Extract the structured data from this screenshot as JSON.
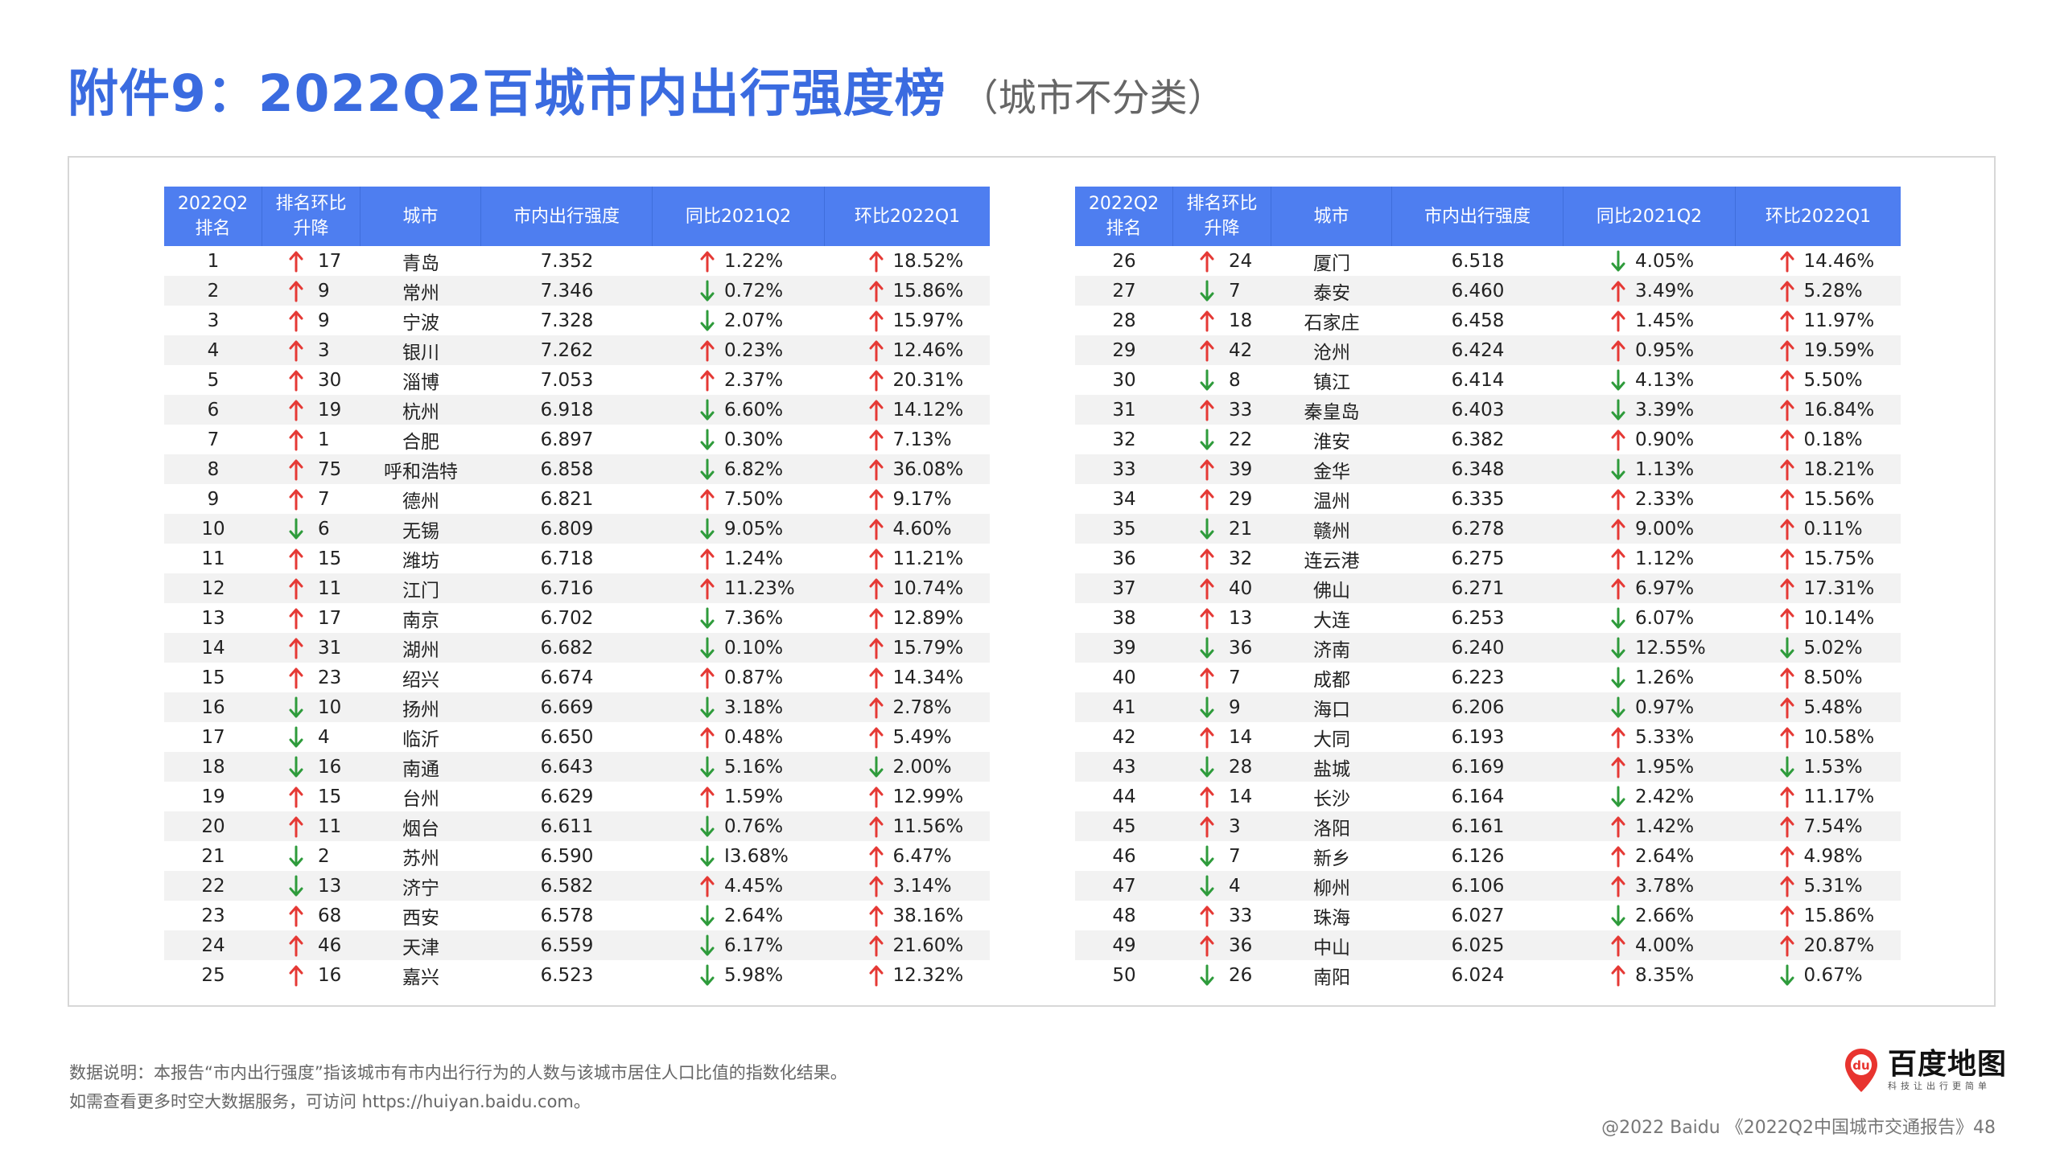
{
  "title": {
    "main": "附件9：2022Q2百城市内出行强度榜",
    "sub": "（城市不分类）"
  },
  "colors": {
    "up": "#e53935",
    "down": "#2e9b3b",
    "header_bg": "#4e7ef0",
    "title": "#3a6be0"
  },
  "table_headers": [
    "2022Q2\n排名",
    "排名环比\n升降",
    "城市",
    "市内出行强度",
    "同比2021Q2",
    "环比2022Q1"
  ],
  "rows": [
    [
      "1",
      "up",
      "17",
      "青岛",
      "7.352",
      "up",
      "1.22%",
      "up",
      "18.52%"
    ],
    [
      "2",
      "up",
      "9",
      "常州",
      "7.346",
      "down",
      "0.72%",
      "up",
      "15.86%"
    ],
    [
      "3",
      "up",
      "9",
      "宁波",
      "7.328",
      "down",
      "2.07%",
      "up",
      "15.97%"
    ],
    [
      "4",
      "up",
      "3",
      "银川",
      "7.262",
      "up",
      "0.23%",
      "up",
      "12.46%"
    ],
    [
      "5",
      "up",
      "30",
      "淄博",
      "7.053",
      "up",
      "2.37%",
      "up",
      "20.31%"
    ],
    [
      "6",
      "up",
      "19",
      "杭州",
      "6.918",
      "down",
      "6.60%",
      "up",
      "14.12%"
    ],
    [
      "7",
      "up",
      "1",
      "合肥",
      "6.897",
      "down",
      "0.30%",
      "up",
      "7.13%"
    ],
    [
      "8",
      "up",
      "75",
      "呼和浩特",
      "6.858",
      "down",
      "6.82%",
      "up",
      "36.08%"
    ],
    [
      "9",
      "up",
      "7",
      "德州",
      "6.821",
      "up",
      "7.50%",
      "up",
      "9.17%"
    ],
    [
      "10",
      "down",
      "6",
      "无锡",
      "6.809",
      "down",
      "9.05%",
      "up",
      "4.60%"
    ],
    [
      "11",
      "up",
      "15",
      "潍坊",
      "6.718",
      "up",
      "1.24%",
      "up",
      "11.21%"
    ],
    [
      "12",
      "up",
      "11",
      "江门",
      "6.716",
      "up",
      "11.23%",
      "up",
      "10.74%"
    ],
    [
      "13",
      "up",
      "17",
      "南京",
      "6.702",
      "down",
      "7.36%",
      "up",
      "12.89%"
    ],
    [
      "14",
      "up",
      "31",
      "湖州",
      "6.682",
      "down",
      "0.10%",
      "up",
      "15.79%"
    ],
    [
      "15",
      "up",
      "23",
      "绍兴",
      "6.674",
      "up",
      "0.87%",
      "up",
      "14.34%"
    ],
    [
      "16",
      "down",
      "10",
      "扬州",
      "6.669",
      "down",
      "3.18%",
      "up",
      "2.78%"
    ],
    [
      "17",
      "down",
      "4",
      "临沂",
      "6.650",
      "up",
      "0.48%",
      "up",
      "5.49%"
    ],
    [
      "18",
      "down",
      "16",
      "南通",
      "6.643",
      "down",
      "5.16%",
      "down",
      "2.00%"
    ],
    [
      "19",
      "up",
      "15",
      "台州",
      "6.629",
      "up",
      "1.59%",
      "up",
      "12.99%"
    ],
    [
      "20",
      "up",
      "11",
      "烟台",
      "6.611",
      "down",
      "0.76%",
      "up",
      "11.56%"
    ],
    [
      "21",
      "down",
      "2",
      "苏州",
      "6.590",
      "down",
      "I3.68%",
      "up",
      "6.47%"
    ],
    [
      "22",
      "down",
      "13",
      "济宁",
      "6.582",
      "up",
      "4.45%",
      "up",
      "3.14%"
    ],
    [
      "23",
      "up",
      "68",
      "西安",
      "6.578",
      "down",
      "2.64%",
      "up",
      "38.16%"
    ],
    [
      "24",
      "up",
      "46",
      "天津",
      "6.559",
      "down",
      "6.17%",
      "up",
      "21.60%"
    ],
    [
      "25",
      "up",
      "16",
      "嘉兴",
      "6.523",
      "down",
      "5.98%",
      "up",
      "12.32%"
    ],
    [
      "26",
      "up",
      "24",
      "厦门",
      "6.518",
      "down",
      "4.05%",
      "up",
      "14.46%"
    ],
    [
      "27",
      "down",
      "7",
      "泰安",
      "6.460",
      "up",
      "3.49%",
      "up",
      "5.28%"
    ],
    [
      "28",
      "up",
      "18",
      "石家庄",
      "6.458",
      "up",
      "1.45%",
      "up",
      "11.97%"
    ],
    [
      "29",
      "up",
      "42",
      "沧州",
      "6.424",
      "up",
      "0.95%",
      "up",
      "19.59%"
    ],
    [
      "30",
      "down",
      "8",
      "镇江",
      "6.414",
      "down",
      "4.13%",
      "up",
      "5.50%"
    ],
    [
      "31",
      "up",
      "33",
      "秦皇岛",
      "6.403",
      "down",
      "3.39%",
      "up",
      "16.84%"
    ],
    [
      "32",
      "down",
      "22",
      "淮安",
      "6.382",
      "up",
      "0.90%",
      "up",
      "0.18%"
    ],
    [
      "33",
      "up",
      "39",
      "金华",
      "6.348",
      "down",
      "1.13%",
      "up",
      "18.21%"
    ],
    [
      "34",
      "up",
      "29",
      "温州",
      "6.335",
      "up",
      "2.33%",
      "up",
      "15.56%"
    ],
    [
      "35",
      "down",
      "21",
      "赣州",
      "6.278",
      "up",
      "9.00%",
      "up",
      "0.11%"
    ],
    [
      "36",
      "up",
      "32",
      "连云港",
      "6.275",
      "up",
      "1.12%",
      "up",
      "15.75%"
    ],
    [
      "37",
      "up",
      "40",
      "佛山",
      "6.271",
      "up",
      "6.97%",
      "up",
      "17.31%"
    ],
    [
      "38",
      "up",
      "13",
      "大连",
      "6.253",
      "down",
      "6.07%",
      "up",
      "10.14%"
    ],
    [
      "39",
      "down",
      "36",
      "济南",
      "6.240",
      "down",
      "12.55%",
      "down",
      "5.02%"
    ],
    [
      "40",
      "up",
      "7",
      "成都",
      "6.223",
      "down",
      "1.26%",
      "up",
      "8.50%"
    ],
    [
      "41",
      "down",
      "9",
      "海口",
      "6.206",
      "down",
      "0.97%",
      "up",
      "5.48%"
    ],
    [
      "42",
      "up",
      "14",
      "大同",
      "6.193",
      "up",
      "5.33%",
      "up",
      "10.58%"
    ],
    [
      "43",
      "down",
      "28",
      "盐城",
      "6.169",
      "up",
      "1.95%",
      "down",
      "1.53%"
    ],
    [
      "44",
      "up",
      "14",
      "长沙",
      "6.164",
      "down",
      "2.42%",
      "up",
      "11.17%"
    ],
    [
      "45",
      "up",
      "3",
      "洛阳",
      "6.161",
      "up",
      "1.42%",
      "up",
      "7.54%"
    ],
    [
      "46",
      "down",
      "7",
      "新乡",
      "6.126",
      "up",
      "2.64%",
      "up",
      "4.98%"
    ],
    [
      "47",
      "down",
      "4",
      "柳州",
      "6.106",
      "up",
      "3.78%",
      "up",
      "5.31%"
    ],
    [
      "48",
      "up",
      "33",
      "珠海",
      "6.027",
      "down",
      "2.66%",
      "up",
      "15.86%"
    ],
    [
      "49",
      "up",
      "36",
      "中山",
      "6.025",
      "up",
      "4.00%",
      "up",
      "20.87%"
    ],
    [
      "50",
      "down",
      "26",
      "南阳",
      "6.024",
      "up",
      "8.35%",
      "down",
      "0.67%"
    ]
  ],
  "notes": {
    "line1": "数据说明：本报告“市内出行强度”指该城市有市内出行行为的人数与该城市居住人口比值的指数化结果。",
    "line2": "如需查看更多时空大数据服务，可访问 https://huiyan.baidu.com。"
  },
  "logo": {
    "name": "百度地图",
    "slogan": "科技让出行更简单",
    "pin_text": "du"
  },
  "footer": "@2022 Baidu 《2022Q2中国城市交通报告》48"
}
